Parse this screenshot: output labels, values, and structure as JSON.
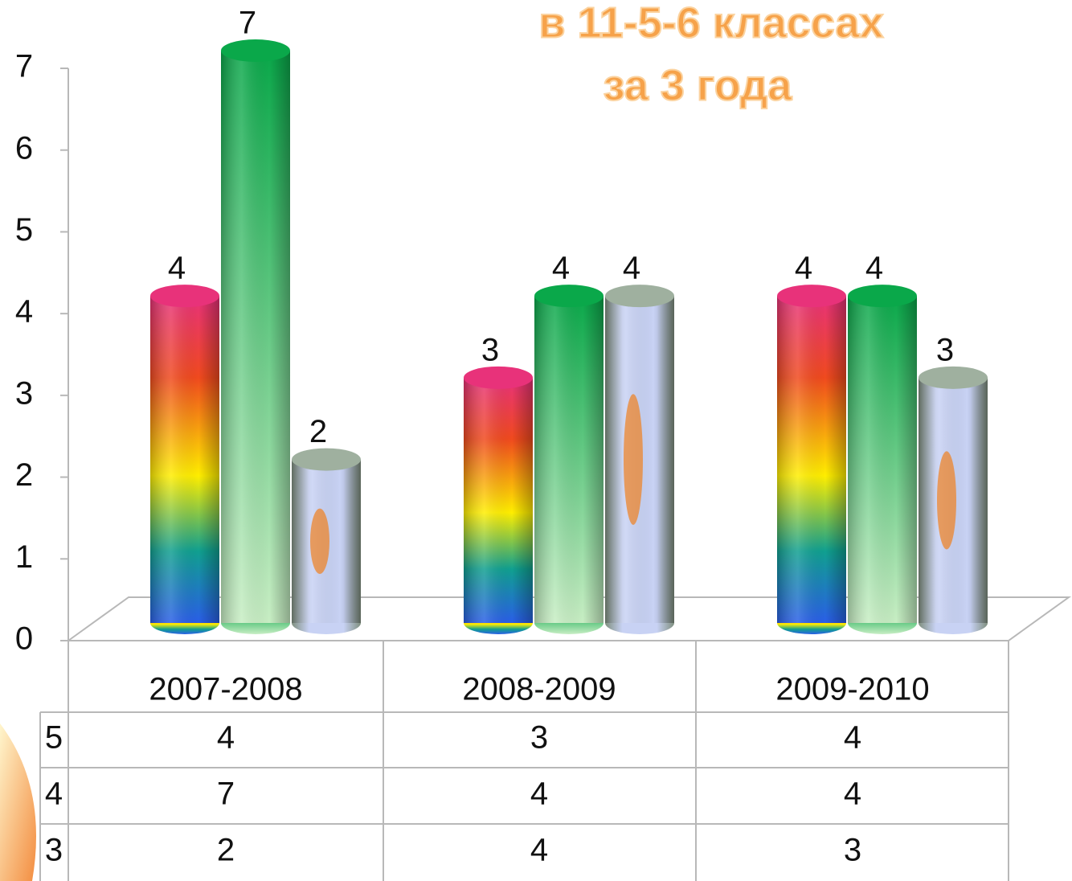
{
  "chart_data": {
    "type": "bar3d",
    "title": "в 11-5-6 классах",
    "subtitle": "за 3 года",
    "categories": [
      "2007-2008",
      "2008-2009",
      "2009-2010"
    ],
    "series": [
      {
        "name": "5",
        "color": "#e8327a",
        "values": [
          4,
          3,
          4
        ]
      },
      {
        "name": "4",
        "color": "#0aa84a",
        "values": [
          7,
          4,
          4
        ]
      },
      {
        "name": "3",
        "color": "#c8d2f4",
        "values": [
          2,
          4,
          3
        ]
      }
    ],
    "ylim": [
      0,
      7
    ],
    "yticks": [
      0,
      1,
      2,
      3,
      4,
      5,
      6,
      7
    ],
    "grid": false,
    "legend": "table"
  }
}
